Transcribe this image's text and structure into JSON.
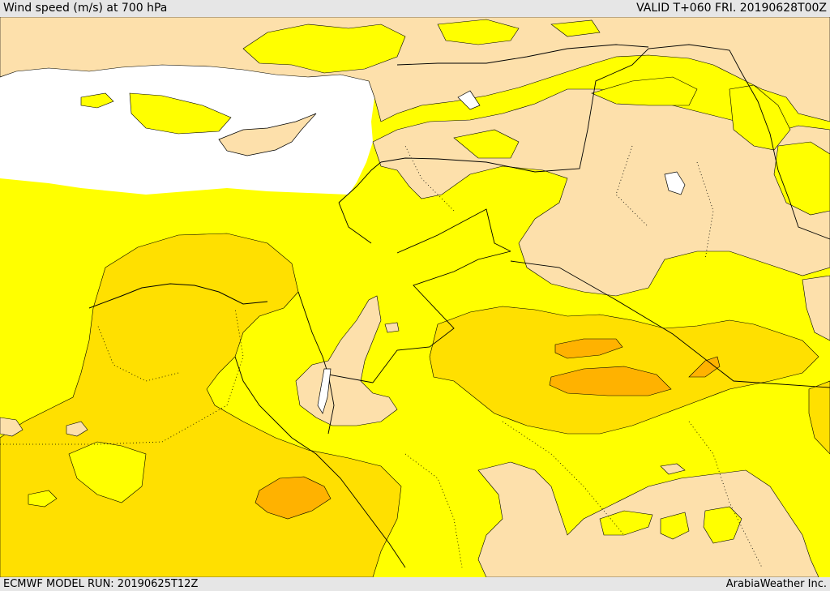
{
  "header": {
    "title": "Wind speed (m/s) at 700 hPa",
    "valid": "VALID T+060 FRI. 20190628T00Z"
  },
  "footer": {
    "model_run": "ECMWF MODEL RUN: 20190625T12Z",
    "credit": "ArabiaWeather Inc."
  },
  "map": {
    "colors": {
      "sea": "#ffffff",
      "band_lowest": "#fde0ab",
      "band_low": "#ffff00",
      "band_mid": "#ffe000",
      "band_high": "#ffb200",
      "border": "#000000"
    }
  }
}
